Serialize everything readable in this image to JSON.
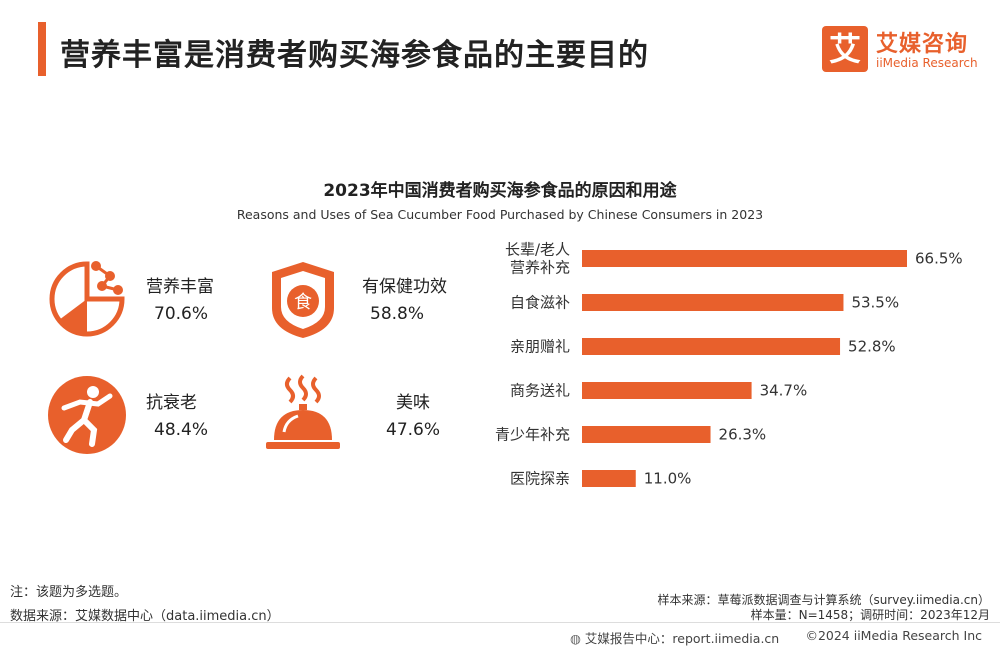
{
  "header": {
    "title": "营养丰富是消费者购买海参食品的主要目的",
    "logo_mark": "艾",
    "logo_cn": "艾媒咨询",
    "logo_en": "iiMedia Research"
  },
  "stats": [
    {
      "label": "营养丰富",
      "value": "70.6%",
      "icon": "pie-chart-icon"
    },
    {
      "label": "有保健功效",
      "value": "58.8%",
      "icon": "shield-food-icon"
    },
    {
      "label": "抗衰老",
      "value": "48.4%",
      "icon": "running-person-icon"
    },
    {
      "label": "美味",
      "value": "47.6%",
      "icon": "cloche-dish-icon"
    }
  ],
  "chart_data": {
    "type": "bar",
    "orientation": "horizontal",
    "title": "2023年中国消费者购买海参食品的原因和用途",
    "subtitle": "Reasons and Uses of Sea Cucumber Food Purchased by Chinese Consumers in 2023",
    "categories": [
      "长辈/老人营养补充",
      "自食滋补",
      "亲朋赠礼",
      "商务送礼",
      "青少年补充",
      "医院探亲"
    ],
    "category_lines": [
      [
        "长辈/老人",
        "营养补充"
      ],
      [
        "自食滋补"
      ],
      [
        "亲朋赠礼"
      ],
      [
        "商务送礼"
      ],
      [
        "青少年补充"
      ],
      [
        "医院探亲"
      ]
    ],
    "values": [
      66.5,
      53.5,
      52.8,
      34.7,
      26.3,
      11.0
    ],
    "value_labels": [
      "66.5%",
      "53.5%",
      "52.8%",
      "34.7%",
      "26.3%",
      "11.0%"
    ],
    "unit": "%",
    "xlim": [
      0,
      70
    ],
    "grid": false,
    "bar_color": "#e8602c"
  },
  "notes": {
    "note": "注：该题为多选题。",
    "data_source": "数据来源：艾媒数据中心（data.iimedia.cn）",
    "sample_source": "样本来源：草莓派数据调查与计算系统（survey.iimedia.cn）",
    "sample_size": "样本量：N=1458；调研时间：2023年12月"
  },
  "footer": {
    "report_center": "艾媒报告中心：report.iimedia.cn",
    "copyright": "©2024 iiMedia Research Inc"
  },
  "colors": {
    "accent": "#e8602c"
  }
}
